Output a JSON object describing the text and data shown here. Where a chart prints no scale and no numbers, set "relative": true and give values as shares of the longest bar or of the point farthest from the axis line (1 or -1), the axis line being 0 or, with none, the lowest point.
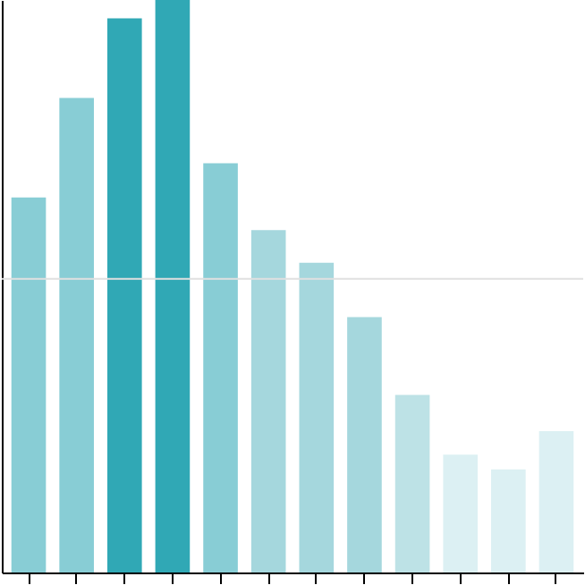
{
  "chart_data": {
    "type": "bar",
    "relative": true,
    "categories": [
      null,
      null,
      null,
      null,
      null,
      null,
      null,
      null,
      null,
      null,
      null,
      null
    ],
    "values": [
      0.655,
      0.829,
      0.968,
      1,
      0.715,
      0.598,
      0.541,
      0.446,
      0.31,
      0.206,
      0.18,
      0.247
    ],
    "colors": [
      "#88cdd5",
      "#88cdd5",
      "#30a8b5",
      "#30a8b5",
      "#88cdd5",
      "#a5d7dd",
      "#a5d7dd",
      "#a5d7dd",
      "#bde2e6",
      "#dcf0f3",
      "#dcf0f3",
      "#dcf0f3"
    ],
    "ref_lines": [
      {
        "axis": "y",
        "value": 0.513,
        "color": "#e0e0e0"
      }
    ],
    "tick_labels": false
  }
}
